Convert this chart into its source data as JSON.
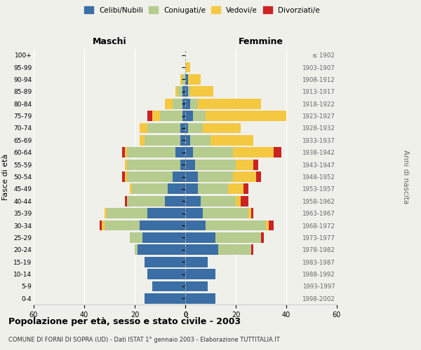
{
  "age_groups": [
    "0-4",
    "5-9",
    "10-14",
    "15-19",
    "20-24",
    "25-29",
    "30-34",
    "35-39",
    "40-44",
    "45-49",
    "50-54",
    "55-59",
    "60-64",
    "65-69",
    "70-74",
    "75-79",
    "80-84",
    "85-89",
    "90-94",
    "95-99",
    "100+"
  ],
  "birth_years": [
    "1998-2002",
    "1993-1997",
    "1988-1992",
    "1983-1987",
    "1978-1982",
    "1973-1977",
    "1968-1972",
    "1963-1967",
    "1958-1962",
    "1953-1957",
    "1948-1952",
    "1943-1947",
    "1938-1942",
    "1933-1937",
    "1928-1932",
    "1923-1927",
    "1918-1922",
    "1913-1917",
    "1908-1912",
    "1903-1907",
    "≤ 1902"
  ],
  "maschi": {
    "celibi": [
      16,
      13,
      15,
      16,
      19,
      17,
      18,
      15,
      8,
      7,
      5,
      2,
      4,
      2,
      2,
      1,
      1,
      1,
      0,
      0,
      0
    ],
    "coniugati": [
      0,
      0,
      0,
      0,
      1,
      5,
      14,
      16,
      15,
      14,
      18,
      21,
      19,
      14,
      13,
      9,
      4,
      2,
      1,
      0,
      0
    ],
    "vedovi": [
      0,
      0,
      0,
      0,
      0,
      0,
      1,
      1,
      0,
      1,
      1,
      1,
      1,
      2,
      3,
      3,
      3,
      1,
      1,
      0,
      0
    ],
    "divorziati": [
      0,
      0,
      0,
      0,
      0,
      0,
      1,
      0,
      1,
      0,
      1,
      0,
      1,
      0,
      0,
      2,
      0,
      0,
      0,
      0,
      0
    ]
  },
  "femmine": {
    "nubili": [
      12,
      9,
      12,
      9,
      13,
      12,
      8,
      7,
      6,
      5,
      5,
      4,
      3,
      2,
      1,
      3,
      2,
      1,
      1,
      0,
      0
    ],
    "coniugate": [
      0,
      0,
      0,
      0,
      13,
      18,
      24,
      18,
      14,
      12,
      14,
      16,
      16,
      8,
      6,
      5,
      3,
      1,
      0,
      0,
      0
    ],
    "vedove": [
      0,
      0,
      0,
      0,
      0,
      0,
      1,
      1,
      2,
      6,
      9,
      7,
      16,
      17,
      15,
      32,
      25,
      9,
      5,
      2,
      0
    ],
    "divorziate": [
      0,
      0,
      0,
      0,
      1,
      1,
      2,
      1,
      3,
      2,
      2,
      2,
      3,
      0,
      0,
      0,
      0,
      0,
      0,
      0,
      0
    ]
  },
  "colors": {
    "celibi": "#3a6ea5",
    "coniugati": "#b5cc8e",
    "vedovi": "#f5c842",
    "divorziati": "#cc2222"
  },
  "legend_labels": [
    "Celibi/Nubili",
    "Coniugati/e",
    "Vedovi/e",
    "Divorziati/e"
  ],
  "title": "Popolazione per età, sesso e stato civile - 2003",
  "subtitle": "COMUNE DI FORNI DI SOPRA (UD) - Dati ISTAT 1° gennaio 2003 - Elaborazione TUTTITALIA.IT",
  "xlabel_left": "Maschi",
  "xlabel_right": "Femmine",
  "ylabel_left": "Fasce di età",
  "ylabel_right": "Anni di nascita",
  "xlim": 60,
  "bg_color": "#f0f0eb"
}
